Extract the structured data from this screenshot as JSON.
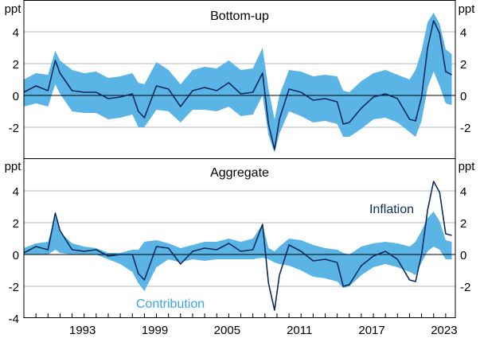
{
  "chart_data": {
    "type": "area",
    "x_ticks": [
      "1993",
      "1999",
      "2005",
      "2011",
      "2017",
      "2023"
    ],
    "x_range": [
      1988.0,
      2023.8
    ],
    "unit_label": "ppt",
    "legend": {
      "inflation": "Inflation",
      "contribution": "Contribution"
    },
    "colors": {
      "band": "#5ab4e5",
      "line": "#0b2a5b",
      "grid": "#b4b4b4"
    },
    "panels": [
      {
        "title": "Bottom-up",
        "ylim": [
          -4,
          6
        ],
        "yticks_left": [
          "4",
          "2",
          "0",
          "-2"
        ],
        "yticks_right": [
          "4",
          "2",
          "0",
          "-2"
        ],
        "series": {
          "t": [
            1988.0,
            1989.0,
            1990.0,
            1990.6,
            1991.0,
            1992.0,
            1993.0,
            1994.0,
            1995.0,
            1996.0,
            1997.0,
            1997.5,
            1998.0,
            1999.0,
            2000.0,
            2001.0,
            2002.0,
            2003.0,
            2004.0,
            2005.0,
            2006.0,
            2007.0,
            2007.8,
            2008.3,
            2008.8,
            2009.2,
            2010.0,
            2011.0,
            2012.0,
            2013.0,
            2014.0,
            2014.5,
            2015.0,
            2016.0,
            2017.0,
            2018.0,
            2019.0,
            2020.0,
            2020.5,
            2021.0,
            2021.5,
            2022.0,
            2022.5,
            2023.0,
            2023.5
          ],
          "inflation": [
            0.2,
            0.6,
            0.3,
            2.2,
            1.4,
            0.3,
            0.2,
            0.2,
            -0.2,
            -0.1,
            0.1,
            -1.0,
            -1.4,
            0.6,
            0.4,
            -0.7,
            0.3,
            0.5,
            0.3,
            0.8,
            0.1,
            0.2,
            1.4,
            -1.8,
            -3.4,
            -1.5,
            0.4,
            0.2,
            -0.3,
            -0.2,
            -0.4,
            -1.8,
            -1.7,
            -0.8,
            -0.1,
            0.1,
            -0.2,
            -1.5,
            -1.6,
            -0.1,
            3.0,
            4.7,
            3.9,
            1.5,
            1.3
          ],
          "band_low": [
            -0.7,
            -0.5,
            -0.7,
            0.7,
            0.1,
            -1.0,
            -1.1,
            -1.1,
            -1.5,
            -1.4,
            -1.2,
            -2.0,
            -2.0,
            -0.9,
            -1.0,
            -1.7,
            -0.9,
            -0.9,
            -1.0,
            -0.7,
            -1.3,
            -1.2,
            0.0,
            -2.5,
            -3.6,
            -2.4,
            -1.0,
            -1.3,
            -1.7,
            -1.6,
            -1.8,
            -2.6,
            -2.6,
            -2.1,
            -1.5,
            -1.4,
            -1.7,
            -2.3,
            -2.6,
            -1.6,
            0.5,
            1.5,
            0.6,
            -0.5,
            -0.6
          ],
          "band_high": [
            1.0,
            1.4,
            1.3,
            2.8,
            2.2,
            1.6,
            1.4,
            1.5,
            1.1,
            1.2,
            1.4,
            0.8,
            0.7,
            2.1,
            1.6,
            0.7,
            1.6,
            1.8,
            1.7,
            2.2,
            1.6,
            1.7,
            3.0,
            0.4,
            -1.5,
            0.0,
            1.6,
            1.5,
            1.2,
            1.3,
            1.2,
            0.3,
            0.2,
            0.9,
            1.4,
            1.6,
            1.3,
            1.0,
            1.6,
            2.8,
            4.6,
            5.2,
            4.5,
            2.9,
            2.6
          ]
        }
      },
      {
        "title": "Aggregate",
        "ylim": [
          -4,
          6
        ],
        "yticks_left": [
          "4",
          "2",
          "0",
          "-2",
          "-4"
        ],
        "yticks_right": [
          "4",
          "2",
          "0",
          "-2"
        ],
        "series": {
          "t": [
            1988.0,
            1989.0,
            1990.0,
            1990.6,
            1991.0,
            1992.0,
            1993.0,
            1994.0,
            1995.0,
            1996.0,
            1997.0,
            1997.5,
            1998.0,
            1999.0,
            2000.0,
            2001.0,
            2002.0,
            2003.0,
            2004.0,
            2005.0,
            2006.0,
            2007.0,
            2007.8,
            2008.3,
            2008.8,
            2009.2,
            2010.0,
            2011.0,
            2012.0,
            2013.0,
            2014.0,
            2014.5,
            2015.0,
            2016.0,
            2017.0,
            2018.0,
            2019.0,
            2020.0,
            2020.5,
            2021.0,
            2021.5,
            2022.0,
            2022.5,
            2023.0,
            2023.5
          ],
          "inflation": [
            0.1,
            0.5,
            0.3,
            2.6,
            1.5,
            0.3,
            0.2,
            0.3,
            -0.1,
            0.0,
            0.0,
            -1.2,
            -1.6,
            0.5,
            0.4,
            -0.6,
            0.2,
            0.4,
            0.3,
            0.7,
            0.2,
            0.3,
            1.9,
            -1.8,
            -3.5,
            -1.3,
            0.6,
            0.2,
            -0.4,
            -0.3,
            -0.5,
            -2.0,
            -1.9,
            -0.7,
            -0.1,
            0.2,
            -0.3,
            -1.6,
            -1.7,
            0.0,
            2.8,
            4.6,
            3.9,
            1.3,
            1.2
          ],
          "band_low": [
            0.0,
            0.0,
            0.0,
            0.3,
            0.1,
            0.0,
            0.0,
            0.0,
            -0.3,
            -0.6,
            -1.1,
            -1.8,
            -2.3,
            -0.8,
            -0.3,
            -0.5,
            -0.3,
            -0.4,
            -0.3,
            -0.3,
            -0.3,
            -0.3,
            -0.2,
            -0.3,
            -0.5,
            -0.6,
            -0.7,
            -1.0,
            -1.4,
            -1.5,
            -1.7,
            -2.1,
            -2.0,
            -1.3,
            -0.8,
            -0.6,
            -0.8,
            -1.1,
            -1.3,
            -0.5,
            0.2,
            0.5,
            0.3,
            -0.3,
            -0.3
          ],
          "band_high": [
            0.4,
            0.7,
            0.8,
            2.4,
            1.4,
            0.7,
            0.5,
            0.4,
            0.1,
            0.1,
            0.3,
            0.3,
            0.8,
            0.9,
            0.7,
            0.4,
            0.6,
            0.8,
            0.8,
            1.0,
            0.8,
            1.0,
            1.9,
            0.4,
            0.2,
            0.5,
            1.0,
            0.9,
            0.6,
            0.4,
            0.3,
            0.1,
            0.0,
            0.5,
            0.7,
            0.8,
            0.7,
            0.5,
            0.8,
            1.5,
            2.3,
            2.7,
            2.1,
            0.9,
            0.8
          ]
        }
      }
    ]
  }
}
